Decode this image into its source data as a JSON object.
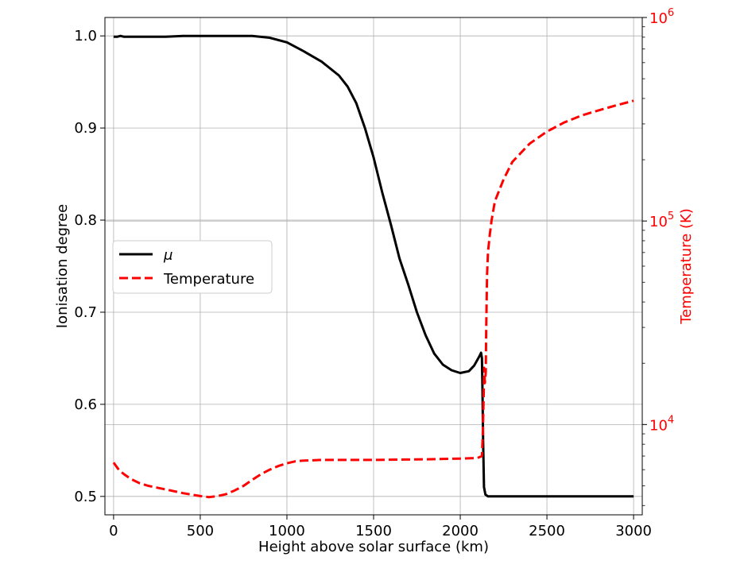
{
  "chart_data": {
    "type": "line",
    "xlabel": "Height above solar surface (km)",
    "ylabel_left": "Ionisation degree",
    "ylabel_right": "Temperature (K)",
    "xlim": [
      -50,
      3050
    ],
    "ylim_left": [
      0.48,
      1.02
    ],
    "ylim_right": [
      3600,
      1000000
    ],
    "right_axis_scale": "log",
    "grid": true,
    "legend_position": "center-left",
    "x_ticks": [
      0,
      500,
      1000,
      1500,
      2000,
      2500,
      3000
    ],
    "x_tick_labels": [
      "0",
      "500",
      "1000",
      "1500",
      "2000",
      "2500",
      "3000"
    ],
    "y_left_ticks": [
      0.5,
      0.6,
      0.7,
      0.8,
      0.9,
      1.0
    ],
    "y_left_tick_labels": [
      "0.5",
      "0.6",
      "0.7",
      "0.8",
      "0.9",
      "1.0"
    ],
    "y_right_major_ticks": [
      10000,
      100000,
      1000000
    ],
    "y_right_tick_labels": [
      {
        "base": "10",
        "exp": "4"
      },
      {
        "base": "10",
        "exp": "5"
      },
      {
        "base": "10",
        "exp": "6"
      }
    ],
    "series": [
      {
        "name": "μ",
        "axis": "left",
        "color": "#000000",
        "style": "solid",
        "points": [
          [
            0,
            0.999
          ],
          [
            20,
            0.999
          ],
          [
            40,
            1.0
          ],
          [
            60,
            0.999
          ],
          [
            100,
            0.999
          ],
          [
            200,
            0.999
          ],
          [
            300,
            0.999
          ],
          [
            400,
            1.0
          ],
          [
            500,
            1.0
          ],
          [
            600,
            1.0
          ],
          [
            700,
            1.0
          ],
          [
            800,
            1.0
          ],
          [
            900,
            0.998
          ],
          [
            1000,
            0.993
          ],
          [
            1100,
            0.983
          ],
          [
            1200,
            0.972
          ],
          [
            1300,
            0.957
          ],
          [
            1350,
            0.945
          ],
          [
            1400,
            0.927
          ],
          [
            1450,
            0.9
          ],
          [
            1500,
            0.868
          ],
          [
            1550,
            0.83
          ],
          [
            1600,
            0.795
          ],
          [
            1650,
            0.758
          ],
          [
            1700,
            0.73
          ],
          [
            1750,
            0.7
          ],
          [
            1800,
            0.675
          ],
          [
            1850,
            0.655
          ],
          [
            1900,
            0.643
          ],
          [
            1950,
            0.637
          ],
          [
            2000,
            0.634
          ],
          [
            2050,
            0.636
          ],
          [
            2080,
            0.642
          ],
          [
            2110,
            0.652
          ],
          [
            2120,
            0.656
          ],
          [
            2125,
            0.65
          ],
          [
            2128,
            0.62
          ],
          [
            2132,
            0.56
          ],
          [
            2137,
            0.51
          ],
          [
            2145,
            0.502
          ],
          [
            2160,
            0.5
          ],
          [
            2500,
            0.5
          ],
          [
            3000,
            0.5
          ]
        ]
      },
      {
        "name": "Temperature",
        "axis": "right",
        "color": "#ff0000",
        "style": "dashed",
        "points": [
          [
            0,
            6500
          ],
          [
            30,
            6000
          ],
          [
            60,
            5700
          ],
          [
            100,
            5400
          ],
          [
            150,
            5150
          ],
          [
            200,
            5000
          ],
          [
            300,
            4800
          ],
          [
            400,
            4600
          ],
          [
            500,
            4450
          ],
          [
            550,
            4400
          ],
          [
            600,
            4450
          ],
          [
            650,
            4550
          ],
          [
            700,
            4750
          ],
          [
            750,
            5000
          ],
          [
            800,
            5350
          ],
          [
            850,
            5700
          ],
          [
            900,
            6000
          ],
          [
            950,
            6250
          ],
          [
            1000,
            6450
          ],
          [
            1050,
            6600
          ],
          [
            1100,
            6650
          ],
          [
            1200,
            6700
          ],
          [
            1500,
            6700
          ],
          [
            1800,
            6750
          ],
          [
            2000,
            6800
          ],
          [
            2100,
            6850
          ],
          [
            2125,
            7000
          ],
          [
            2130,
            9000
          ],
          [
            2135,
            14000
          ],
          [
            2138,
            19000
          ],
          [
            2142,
            16000
          ],
          [
            2147,
            18000
          ],
          [
            2150,
            30000
          ],
          [
            2155,
            55000
          ],
          [
            2160,
            70000
          ],
          [
            2170,
            85000
          ],
          [
            2180,
            100000
          ],
          [
            2200,
            125000
          ],
          [
            2250,
            160000
          ],
          [
            2300,
            195000
          ],
          [
            2400,
            240000
          ],
          [
            2500,
            275000
          ],
          [
            2600,
            305000
          ],
          [
            2700,
            330000
          ],
          [
            2800,
            350000
          ],
          [
            2900,
            370000
          ],
          [
            3000,
            390000
          ]
        ]
      }
    ]
  }
}
